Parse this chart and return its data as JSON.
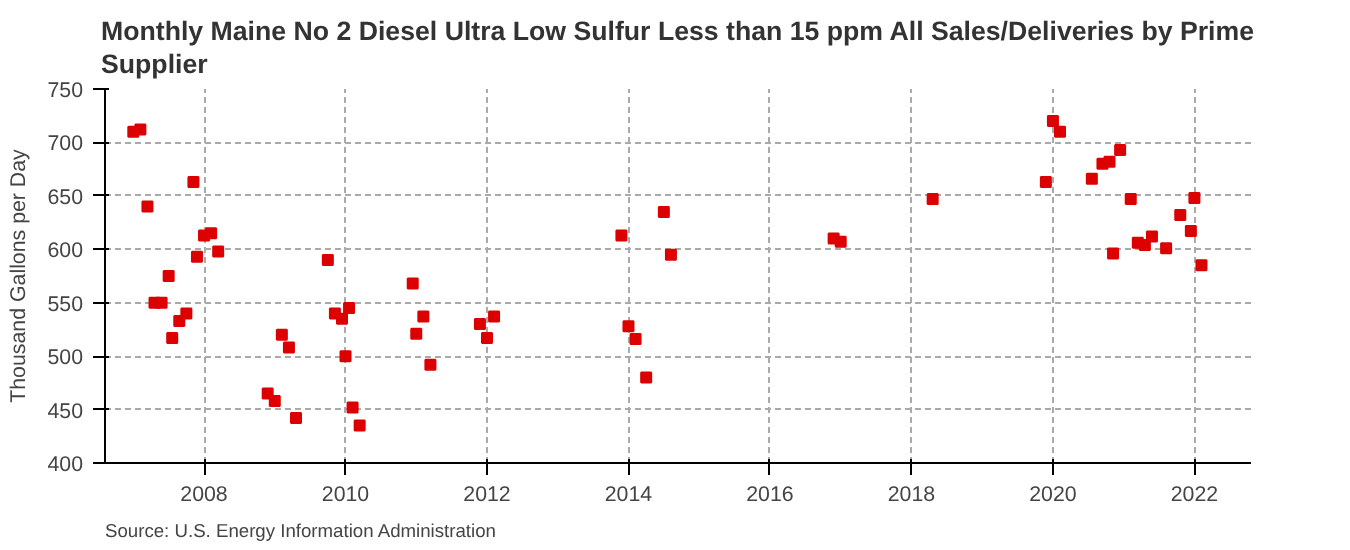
{
  "chart_data": {
    "type": "scatter",
    "title": "Monthly Maine No 2 Diesel Ultra Low Sulfur Less than 15 ppm All Sales/Deliveries by Prime Supplier",
    "ylabel": "Thousand Gallons per Day",
    "x": [
      2007.0,
      2007.1,
      2007.2,
      2007.3,
      2007.4,
      2007.5,
      2007.55,
      2007.65,
      2007.75,
      2007.85,
      2007.9,
      2008.0,
      2008.1,
      2008.2,
      2008.9,
      2009.0,
      2009.1,
      2009.2,
      2009.3,
      2009.75,
      2009.85,
      2009.95,
      2010.05,
      2010.0,
      2010.1,
      2010.2,
      2010.95,
      2011.0,
      2011.1,
      2011.2,
      2011.9,
      2012.0,
      2012.1,
      2013.9,
      2014.0,
      2014.1,
      2014.25,
      2014.5,
      2014.6,
      2016.9,
      2017.0,
      2018.3,
      2019.9,
      2020.0,
      2020.1,
      2020.55,
      2020.7,
      2020.8,
      2020.85,
      2020.95,
      2021.1,
      2021.2,
      2021.3,
      2021.4,
      2021.6,
      2021.8,
      2021.95,
      2022.0,
      2022.1
    ],
    "series": [
      {
        "color": "#dd0000",
        "values": [
          710,
          712,
          640,
          550,
          550,
          575,
          517,
          533,
          540,
          663,
          593,
          613,
          615,
          598,
          465,
          458,
          520,
          508,
          442,
          590,
          540,
          535,
          545,
          500,
          452,
          435,
          568,
          521,
          537,
          492,
          530,
          517,
          537,
          613,
          528,
          516,
          480,
          635,
          595,
          610,
          607,
          647,
          663,
          720,
          710,
          666,
          680,
          682,
          596,
          693,
          647,
          606,
          604,
          612,
          601,
          632,
          617,
          648,
          585
        ]
      }
    ],
    "marker": "square",
    "xlim": [
      2006.6,
      2022.8
    ],
    "ylim": [
      400,
      750
    ],
    "xticks": [
      2008,
      2010,
      2012,
      2014,
      2016,
      2018,
      2020,
      2022
    ],
    "yticks": [
      400,
      450,
      500,
      550,
      600,
      650,
      700,
      750
    ],
    "grid": true,
    "annotations": [
      "Source: U.S. Energy Information Administration"
    ]
  }
}
